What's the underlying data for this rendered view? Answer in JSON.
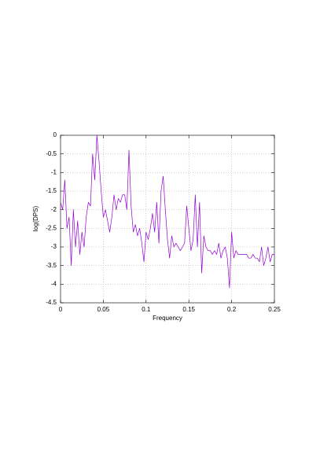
{
  "chart_data": {
    "type": "line",
    "xlabel": "Frequency",
    "ylabel": "log(DPS)",
    "x": [
      0,
      0.0025,
      0.005,
      0.0075,
      0.01,
      0.0125,
      0.015,
      0.0175,
      0.02,
      0.0225,
      0.025,
      0.0275,
      0.03,
      0.0325,
      0.035,
      0.0375,
      0.04,
      0.0425,
      0.045,
      0.0475,
      0.05,
      0.0525,
      0.055,
      0.0575,
      0.06,
      0.0625,
      0.065,
      0.0675,
      0.07,
      0.0725,
      0.075,
      0.0775,
      0.08,
      0.0825,
      0.085,
      0.0875,
      0.09,
      0.0925,
      0.095,
      0.0975,
      0.1,
      0.1025,
      0.105,
      0.1075,
      0.11,
      0.1125,
      0.115,
      0.1175,
      0.12,
      0.1225,
      0.125,
      0.1275,
      0.13,
      0.1325,
      0.135,
      0.1375,
      0.14,
      0.1425,
      0.145,
      0.1475,
      0.15,
      0.1525,
      0.155,
      0.1575,
      0.16,
      0.1625,
      0.165,
      0.1675,
      0.17,
      0.1725,
      0.175,
      0.1775,
      0.18,
      0.1825,
      0.185,
      0.1875,
      0.19,
      0.1925,
      0.195,
      0.1975,
      0.2,
      0.2025,
      0.205,
      0.2075,
      0.21,
      0.2125,
      0.215,
      0.2175,
      0.22,
      0.2225,
      0.225,
      0.2275,
      0.23,
      0.2325,
      0.235,
      0.2375,
      0.24,
      0.2425,
      0.245,
      0.2475,
      0.25
    ],
    "series": [
      {
        "color": "#9400d3",
        "values": [
          -1.8,
          -2.0,
          -1.2,
          -2.5,
          -2.2,
          -3.5,
          -2.0,
          -3.0,
          -2.3,
          -3.2,
          -2.6,
          -3.0,
          -2.2,
          -1.8,
          -1.9,
          -0.5,
          -1.2,
          0,
          -0.7,
          -1.5,
          -2.2,
          -2.0,
          -2.3,
          -2.6,
          -2.2,
          -1.6,
          -2.0,
          -1.7,
          -1.8,
          -1.6,
          -1.6,
          -2.0,
          -0.4,
          -1.9,
          -2.6,
          -2.4,
          -2.7,
          -2.5,
          -2.9,
          -3.4,
          -2.6,
          -2.8,
          -2.5,
          -2.1,
          -2.6,
          -1.8,
          -2.9,
          -1.5,
          -1.1,
          -2.0,
          -2.8,
          -3.3,
          -2.7,
          -3.0,
          -2.9,
          -3.0,
          -3.1,
          -3.0,
          -2.9,
          -1.9,
          -2.5,
          -3.1,
          -2.8,
          -1.6,
          -3.0,
          -1.8,
          -3.7,
          -2.7,
          -3.0,
          -3.1,
          -3.1,
          -3.2,
          -3.1,
          -3.2,
          -2.9,
          -3.3,
          -3.1,
          -3.0,
          -3.3,
          -4.1,
          -2.6,
          -3.3,
          -3.1,
          -3.2,
          -3.2,
          -3.2,
          -3.2,
          -3.2,
          -3.3,
          -3.3,
          -3.2,
          -3.3,
          -3.3,
          -3.4,
          -3.0,
          -3.5,
          -3.3,
          -3.0,
          -3.4,
          -3.2,
          -3.2
        ]
      }
    ],
    "xlim": [
      0,
      0.25
    ],
    "xticks": [
      0,
      0.05,
      0.1,
      0.15,
      0.2,
      0.25
    ],
    "ylim": [
      -4.5,
      0
    ],
    "yticks": [
      0,
      -0.5,
      -1,
      -1.5,
      -2,
      -2.5,
      -3,
      -3.5,
      -4,
      -4.5
    ],
    "grid": true
  }
}
